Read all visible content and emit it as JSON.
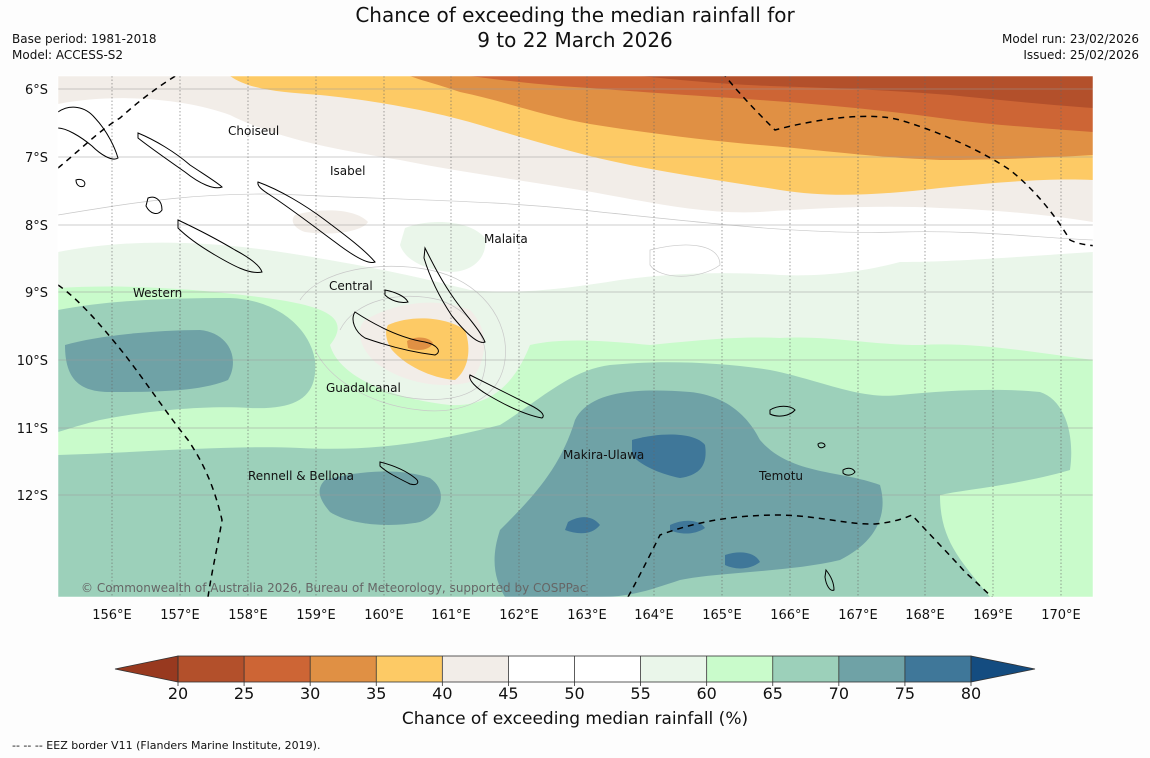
{
  "header": {
    "title_line1": "Chance of exceeding the median rainfall for",
    "title_line2": "9 to 22 March 2026",
    "base_period": "Base period: 1981-2018",
    "model": "Model: ACCESS-S2",
    "model_run": "Model run: 23/02/2026",
    "issued": "Issued: 25/02/2026"
  },
  "map": {
    "lat_labels": [
      "6°S",
      "7°S",
      "8°S",
      "9°S",
      "10°S",
      "11°S",
      "12°S"
    ],
    "lon_labels": [
      "156°E",
      "157°E",
      "158°E",
      "159°E",
      "160°E",
      "161°E",
      "162°E",
      "163°E",
      "164°E",
      "165°E",
      "166°E",
      "167°E",
      "168°E",
      "169°E",
      "170°E"
    ],
    "region_labels": {
      "choiseul": "Choiseul",
      "isabel": "Isabel",
      "malaita": "Malaita",
      "central": "Central",
      "western": "Western",
      "guadalcanal": "Guadalcanal",
      "makira_ulawa": "Makira-Ulawa",
      "rennell_bellona": "Rennell & Bellona",
      "temotu": "Temotu"
    },
    "copyright": "© Commonwealth of Australia 2026, Bureau of Meteorology, supported by COSPPac"
  },
  "colorbar": {
    "ticks": [
      "20",
      "25",
      "30",
      "35",
      "40",
      "45",
      "50",
      "55",
      "60",
      "65",
      "70",
      "75",
      "80"
    ],
    "colors": [
      "#b3502b",
      "#cd6535",
      "#e09044",
      "#fdca65",
      "#f2ede8",
      "#ffffff",
      "#ffffff",
      "#eaf6ea",
      "#c9fbcb",
      "#9cd0ba",
      "#6fa2a6",
      "#3f7799"
    ],
    "under_color": "#98391f",
    "over_color": "#144c80",
    "title": "Chance of exceeding median rainfall (%)"
  },
  "footnote": "--  --  -- EEZ border V11 (Flanders Marine Institute, 2019)."
}
